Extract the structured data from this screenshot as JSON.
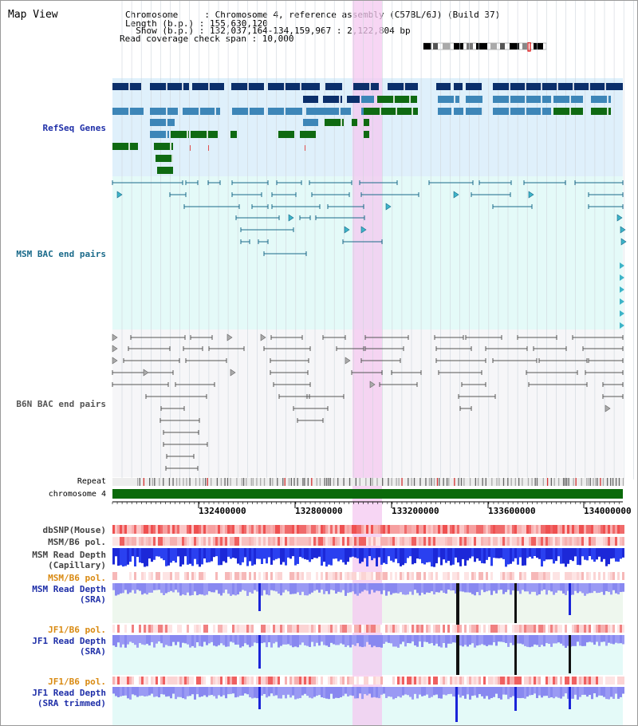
{
  "header": {
    "title": "Map View",
    "lines": [
      "Chromosome     : Chromosome 4, reference assembly (C57BL/6J) (Build 37)",
      "Length (b.p.) : 155,630,120",
      "  Show (b.p.) : 132,037,164-134,159,967 : 2,122,804 bp",
      "Read coverage check span : 10,000"
    ]
  },
  "tracks": {
    "refseq": "RefSeq Genes",
    "msm_bac": "MSM BAC end pairs",
    "b6n_bac": "B6N BAC end pairs",
    "repeat": "Repeat",
    "chromosome": "chromosome 4",
    "dbsnp": "dbSNP(Mouse)",
    "msm_b6_pol_1": "MSM/B6 pol.",
    "msm_read_depth_cap_1": "MSM Read Depth",
    "msm_read_depth_cap_2": "(Capillary)",
    "msm_b6_pol_2": "MSM/B6 pol.",
    "msm_read_depth_sra_1": "MSM Read Depth",
    "msm_read_depth_sra_2": "(SRA)",
    "jf1_b6_pol_1": "JF1/B6 pol.",
    "jf1_read_depth_sra_1": "JF1 Read Depth",
    "jf1_read_depth_sra_2": "(SRA)",
    "jf1_b6_pol_2": "JF1/B6 pol.",
    "jf1_read_depth_trim_1": "JF1 Read Depth",
    "jf1_read_depth_trim_2": "(SRA trimmed)"
  },
  "axis": {
    "ticks": [
      "132400000",
      "132800000",
      "133200000",
      "133600000",
      "134000000"
    ]
  },
  "colors": {
    "refseq_dark": "#0b2f6b",
    "refseq_mid": "#3d86b8",
    "refseq_green": "#0f6a12",
    "msm_bac": "#1a6a8a",
    "b6n_bac": "#555555",
    "highlight": "#f4c8f0",
    "chromosome_bar": "#0a6a0a",
    "label_blue": "#1f2fa8",
    "label_orange": "#d98a12"
  }
}
